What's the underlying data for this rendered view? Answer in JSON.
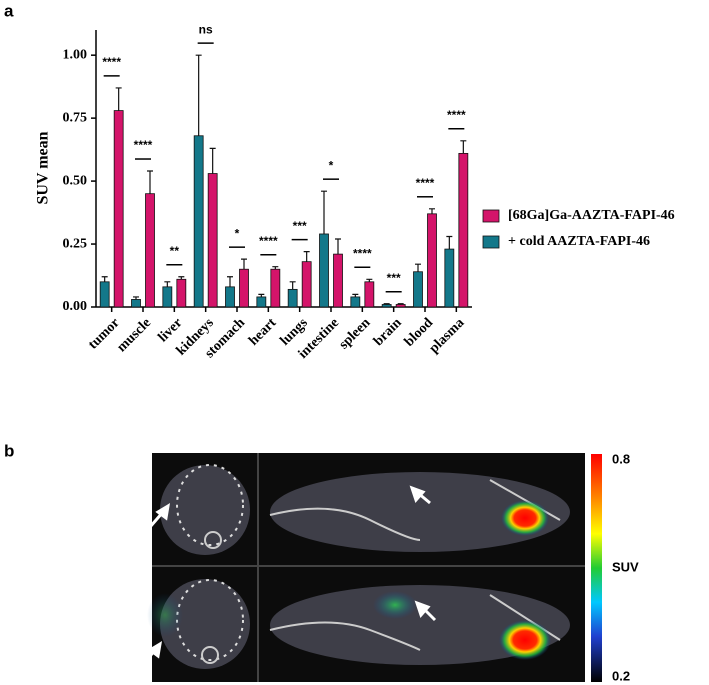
{
  "panel_labels": [
    "a",
    "b"
  ],
  "chart_data": {
    "type": "bar",
    "ylabel": "SUV mean",
    "categories": [
      "tumor",
      "muscle",
      "liver",
      "kidneys",
      "stomach",
      "heart",
      "lungs",
      "intestine",
      "spleen",
      "brain",
      "blood",
      "plasma"
    ],
    "series": [
      {
        "name": "[68Ga]Ga-AAZTA-FAPI-46",
        "color": "#d4146a",
        "values": [
          0.78,
          0.45,
          0.11,
          0.53,
          0.15,
          0.15,
          0.18,
          0.21,
          0.1,
          0.01,
          0.37,
          0.61
        ],
        "errors": [
          0.09,
          0.09,
          0.01,
          0.1,
          0.04,
          0.01,
          0.04,
          0.06,
          0.01,
          0.003,
          0.02,
          0.05
        ]
      },
      {
        "name": "+ cold AAZTA-FAPI-46",
        "color": "#13788a",
        "values": [
          0.1,
          0.03,
          0.08,
          0.68,
          0.08,
          0.04,
          0.07,
          0.29,
          0.04,
          0.01,
          0.14,
          0.23
        ],
        "errors": [
          0.02,
          0.01,
          0.02,
          0.32,
          0.04,
          0.01,
          0.03,
          0.17,
          0.01,
          0.003,
          0.03,
          0.05
        ]
      }
    ],
    "significance": [
      "****",
      "****",
      "**",
      "ns",
      "*",
      "****",
      "***",
      "*",
      "****",
      "***",
      "****",
      "****"
    ],
    "ylim": [
      0,
      1.1
    ],
    "yticks": [
      {
        "value": 0,
        "label": "0.00"
      },
      {
        "value": 0.25,
        "label": "0.25"
      },
      {
        "value": 0.5,
        "label": "0.50"
      },
      {
        "value": 0.75,
        "label": "0.75"
      },
      {
        "value": 1,
        "label": "1.00"
      }
    ],
    "legend": "right"
  },
  "image_panel": {
    "colorbar_max": 0.8,
    "colorbar_label": "SUV",
    "colorbar_min": 0.2
  }
}
